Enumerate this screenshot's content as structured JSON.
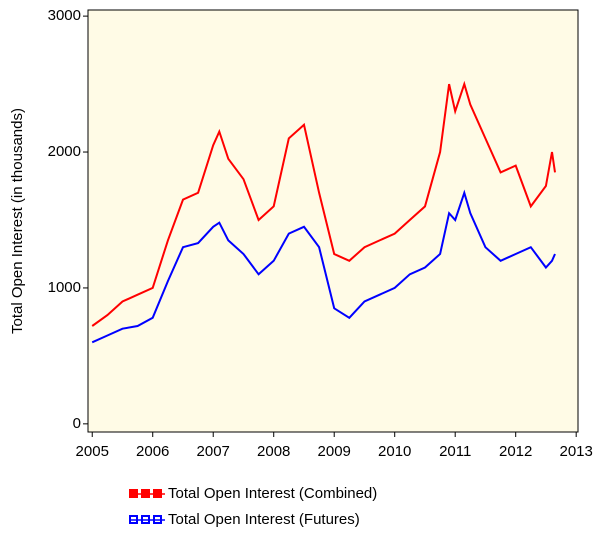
{
  "chart_data": {
    "type": "line",
    "y_label": "Total Open Interest (in thousands)",
    "x": [
      2005.0,
      2005.25,
      2005.5,
      2005.75,
      2006.0,
      2006.25,
      2006.5,
      2006.75,
      2007.0,
      2007.1,
      2007.25,
      2007.5,
      2007.75,
      2008.0,
      2008.25,
      2008.5,
      2008.75,
      2009.0,
      2009.25,
      2009.5,
      2009.75,
      2010.0,
      2010.25,
      2010.5,
      2010.75,
      2010.9,
      2011.0,
      2011.15,
      2011.25,
      2011.5,
      2011.75,
      2012.0,
      2012.25,
      2012.5,
      2012.6,
      2012.65
    ],
    "series": [
      {
        "name": "Total Open Interest (Combined)",
        "color": "#ff0000",
        "marker": "filled",
        "values": [
          720,
          800,
          900,
          950,
          1000,
          1350,
          1650,
          1700,
          2050,
          2150,
          1950,
          1800,
          1500,
          1600,
          2100,
          2200,
          1700,
          1250,
          1200,
          1300,
          1350,
          1400,
          1500,
          1600,
          2000,
          2500,
          2300,
          2500,
          2350,
          2100,
          1850,
          1900,
          1600,
          1750,
          2000,
          1850
        ]
      },
      {
        "name": "Total Open Interest (Futures)",
        "color": "#0000ff",
        "marker": "open",
        "values": [
          600,
          650,
          700,
          720,
          780,
          1050,
          1300,
          1330,
          1450,
          1480,
          1350,
          1250,
          1100,
          1200,
          1400,
          1450,
          1300,
          850,
          780,
          900,
          950,
          1000,
          1100,
          1150,
          1250,
          1550,
          1500,
          1700,
          1550,
          1300,
          1200,
          1250,
          1300,
          1150,
          1200,
          1250
        ]
      }
    ],
    "xlim": [
      2004.93,
      2013.03
    ],
    "xticks": [
      2005,
      2006,
      2007,
      2008,
      2009,
      2010,
      2011,
      2012,
      2013
    ],
    "ylim": [
      -60,
      3045
    ],
    "yticks": [
      0,
      1000,
      2000,
      3000
    ],
    "background": "#fffbe6"
  }
}
